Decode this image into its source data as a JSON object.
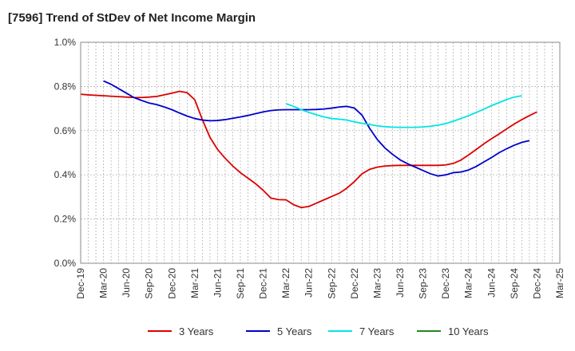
{
  "title": "[7596]  Trend of StDev of Net Income Margin",
  "chart_data": {
    "type": "line",
    "title": "[7596]  Trend of StDev of Net Income Margin",
    "x_ticks": [
      "Dec-19",
      "Mar-20",
      "Jun-20",
      "Sep-20",
      "Dec-20",
      "Mar-21",
      "Jun-21",
      "Sep-21",
      "Dec-21",
      "Mar-22",
      "Jun-22",
      "Sep-22",
      "Dec-22",
      "Mar-23",
      "Jun-23",
      "Sep-23",
      "Dec-23",
      "Mar-24",
      "Jun-24",
      "Sep-24",
      "Dec-24",
      "Mar-25"
    ],
    "y_ticks": [
      "0.0%",
      "0.2%",
      "0.4%",
      "0.6%",
      "0.8%",
      "1.0%"
    ],
    "ylim": [
      0,
      1.0
    ],
    "grid": true,
    "legend_position": "bottom",
    "series": [
      {
        "name": "3 Years",
        "color": "#dd0000",
        "start": "Dec-19",
        "values": [
          0.765,
          0.762,
          0.76,
          0.758,
          0.756,
          0.754,
          0.752,
          0.75,
          0.75,
          0.752,
          0.755,
          0.762,
          0.77,
          0.778,
          0.772,
          0.74,
          0.65,
          0.57,
          0.515,
          0.475,
          0.44,
          0.41,
          0.385,
          0.36,
          0.33,
          0.295,
          0.288,
          0.287,
          0.265,
          0.252,
          0.257,
          0.272,
          0.287,
          0.302,
          0.317,
          0.34,
          0.37,
          0.405,
          0.425,
          0.435,
          0.44,
          0.442,
          0.443,
          0.443,
          0.443,
          0.443,
          0.443,
          0.443,
          0.445,
          0.452,
          0.467,
          0.49,
          0.515,
          0.54,
          0.563,
          0.585,
          0.608,
          0.63,
          0.65,
          0.668,
          0.685
        ]
      },
      {
        "name": "5 Years",
        "color": "#0000cc",
        "start": "Mar-20",
        "values": [
          0.825,
          0.81,
          0.79,
          0.77,
          0.75,
          0.737,
          0.725,
          0.718,
          0.707,
          0.695,
          0.68,
          0.666,
          0.655,
          0.648,
          0.645,
          0.646,
          0.65,
          0.656,
          0.662,
          0.669,
          0.677,
          0.685,
          0.691,
          0.694,
          0.695,
          0.695,
          0.695,
          0.695,
          0.696,
          0.698,
          0.702,
          0.707,
          0.71,
          0.702,
          0.67,
          0.61,
          0.56,
          0.522,
          0.493,
          0.468,
          0.45,
          0.435,
          0.42,
          0.405,
          0.395,
          0.4,
          0.41,
          0.413,
          0.422,
          0.438,
          0.458,
          0.478,
          0.5,
          0.518,
          0.534,
          0.547,
          0.555
        ]
      },
      {
        "name": "7 Years",
        "color": "#00e5e5",
        "start": "Mar-22",
        "values": [
          0.722,
          0.71,
          0.695,
          0.683,
          0.672,
          0.662,
          0.655,
          0.652,
          0.648,
          0.64,
          0.633,
          0.628,
          0.622,
          0.618,
          0.616,
          0.615,
          0.615,
          0.615,
          0.617,
          0.62,
          0.625,
          0.632,
          0.643,
          0.655,
          0.668,
          0.682,
          0.697,
          0.713,
          0.727,
          0.741,
          0.752,
          0.758
        ]
      },
      {
        "name": "10 Years",
        "color": "#228822",
        "start": "Dec-19",
        "values": []
      }
    ]
  }
}
